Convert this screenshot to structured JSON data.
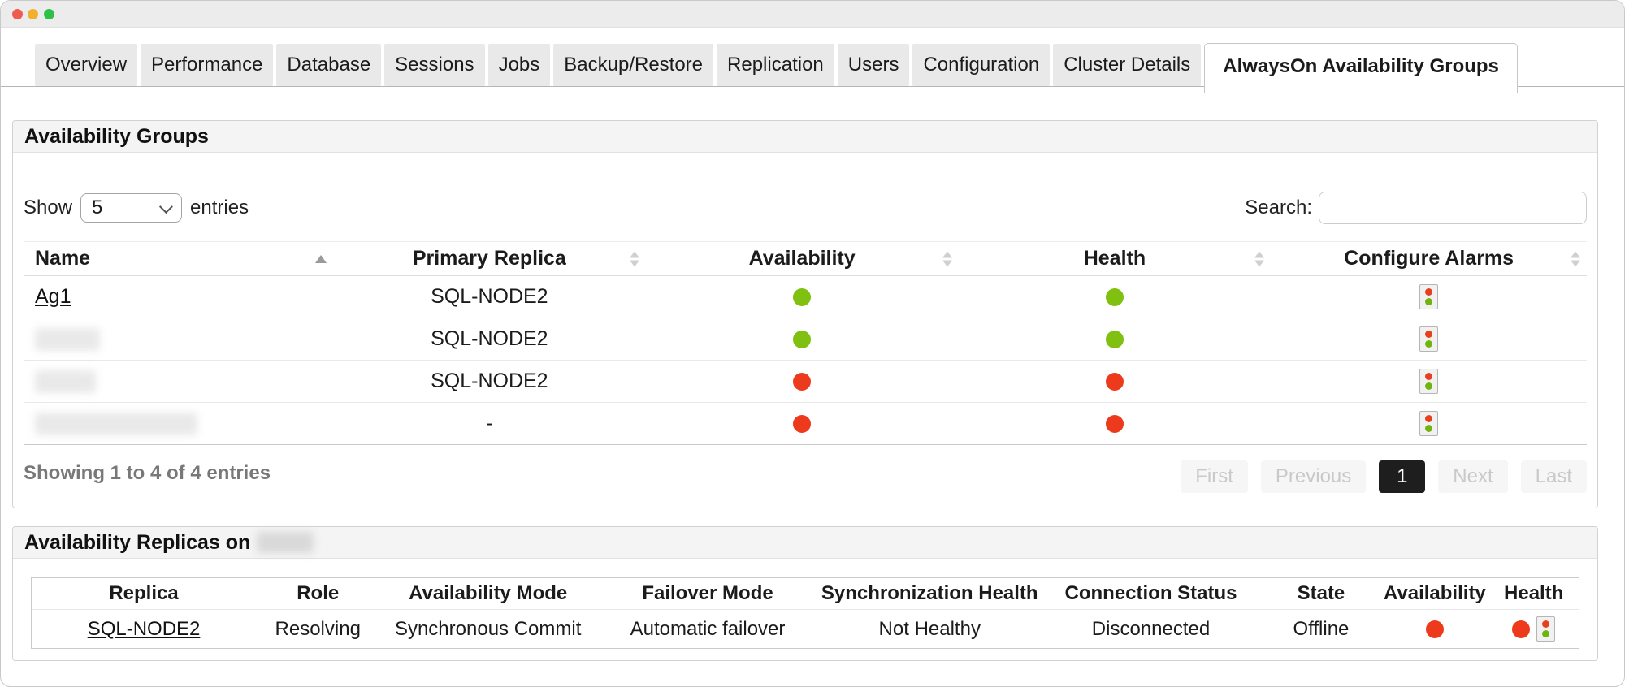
{
  "window": {
    "buttons": [
      "close",
      "minimize",
      "zoom"
    ]
  },
  "tabs": {
    "items": [
      "Overview",
      "Performance",
      "Database",
      "Sessions",
      "Jobs",
      "Backup/Restore",
      "Replication",
      "Users",
      "Configuration",
      "Cluster Details",
      "AlwaysOn Availability Groups"
    ],
    "active": "AlwaysOn Availability Groups"
  },
  "colors": {
    "status_green": "#7fc011",
    "status_red": "#ee3a1c",
    "alarm_icon_red": "#e8401f",
    "alarm_icon_green": "#72b40e"
  },
  "availability_groups_panel": {
    "title": "Availability Groups",
    "show_label": "Show",
    "page_size": "5",
    "entries_label": "entries",
    "search_label": "Search:",
    "search_value": "",
    "table": {
      "columns": [
        {
          "label": "Name",
          "sort": "asc",
          "align": "left",
          "width": "19.8%"
        },
        {
          "label": "Primary Replica",
          "sort": "both",
          "align": "center",
          "width": "20%"
        },
        {
          "label": "Availability",
          "sort": "both",
          "align": "center",
          "width": "20%"
        },
        {
          "label": "Health",
          "sort": "both",
          "align": "center",
          "width": "20%"
        },
        {
          "label": "Configure Alarms",
          "sort": "both",
          "align": "center",
          "width": "20.2%"
        }
      ],
      "rows": [
        {
          "name": "Ag1",
          "name_redacted": false,
          "redact_width": 0,
          "primary_replica": "SQL-NODE2",
          "availability": "green",
          "health": "green"
        },
        {
          "name": "",
          "name_redacted": true,
          "redact_width": 80,
          "primary_replica": "SQL-NODE2",
          "availability": "green",
          "health": "green"
        },
        {
          "name": "",
          "name_redacted": true,
          "redact_width": 75,
          "primary_replica": "SQL-NODE2",
          "availability": "red",
          "health": "red"
        },
        {
          "name": "",
          "name_redacted": true,
          "redact_width": 200,
          "primary_replica": "-",
          "availability": "red",
          "health": "red"
        }
      ]
    },
    "summary": "Showing 1 to 4 of 4 entries",
    "pagination": [
      {
        "label": "First",
        "state": "disabled"
      },
      {
        "label": "Previous",
        "state": "disabled"
      },
      {
        "label": "1",
        "state": "current"
      },
      {
        "label": "Next",
        "state": "disabled"
      },
      {
        "label": "Last",
        "state": "disabled"
      }
    ]
  },
  "availability_replicas_panel": {
    "title": "Availability Replicas on",
    "title_target_redacted": true,
    "table": {
      "columns": [
        {
          "key": "replica",
          "label": "Replica",
          "width": "14.5%"
        },
        {
          "key": "role",
          "label": "Role",
          "width": "8%"
        },
        {
          "key": "availability_mode",
          "label": "Availability Mode",
          "width": "14%"
        },
        {
          "key": "failover_mode",
          "label": "Failover Mode",
          "width": "14.4%"
        },
        {
          "key": "synchronization_health",
          "label": "Synchronization Health",
          "width": "14.3%"
        },
        {
          "key": "connection_status",
          "label": "Connection Status",
          "width": "14.3%"
        },
        {
          "key": "state",
          "label": "State",
          "width": "7.7%"
        },
        {
          "key": "availability",
          "label": "Availability",
          "width": "7%"
        },
        {
          "key": "health",
          "label": "Health",
          "width": "5.8%"
        }
      ],
      "rows": [
        {
          "replica": "SQL-NODE2",
          "role": "Resolving",
          "availability_mode": "Synchronous Commit",
          "failover_mode": "Automatic failover",
          "synchronization_health": "Not Healthy",
          "connection_status": "Disconnected",
          "state": "Offline",
          "availability": "red",
          "health": "red"
        }
      ]
    }
  }
}
